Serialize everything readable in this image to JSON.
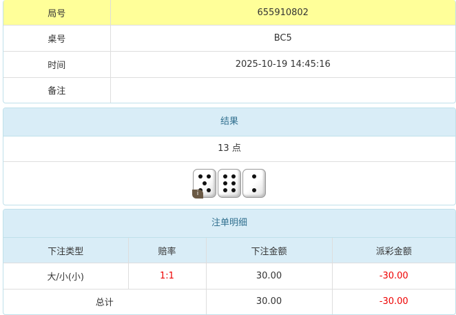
{
  "info": {
    "rows": [
      {
        "label": "局号",
        "value": "655910802"
      },
      {
        "label": "桌号",
        "value": "BC5"
      },
      {
        "label": "时间",
        "value": "2025-10-19 14:45:16"
      },
      {
        "label": "备注",
        "value": ""
      }
    ]
  },
  "result": {
    "title": "结果",
    "points": "13 点",
    "dice": [
      5,
      6,
      2
    ],
    "info_badge": "i"
  },
  "bets": {
    "title": "注单明细",
    "headers": [
      "下注类型",
      "赔率",
      "下注金额",
      "派彩金额"
    ],
    "rows": [
      {
        "type": "大/小(小)",
        "odds": "1:1",
        "amount": "30.00",
        "payout": "-30.00"
      }
    ],
    "total": {
      "label": "总计",
      "amount": "30.00",
      "payout": "-30.00"
    }
  },
  "colors": {
    "highlight": "#ffff99",
    "panel_header": "#d9edf7",
    "negative": "#ee0000"
  }
}
